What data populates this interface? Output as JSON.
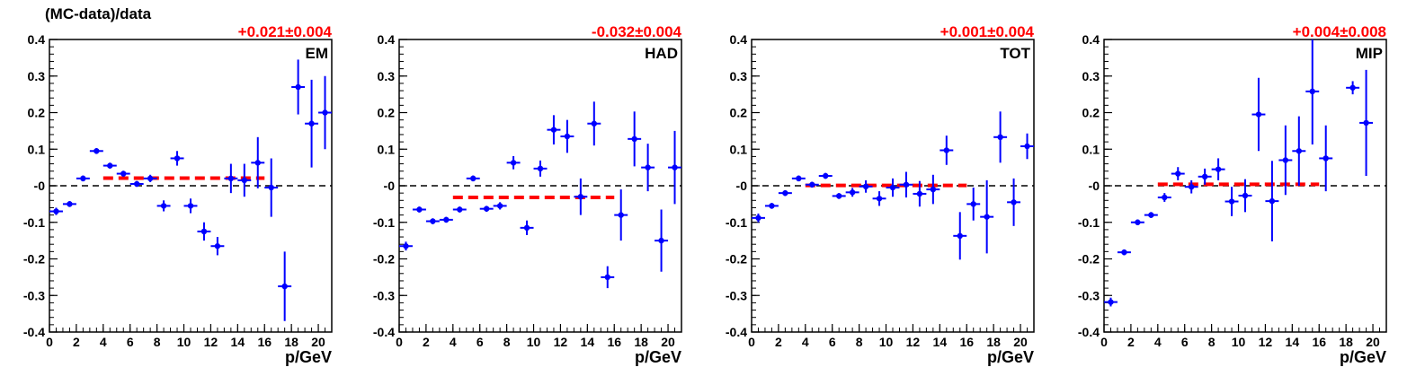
{
  "figure": {
    "ylabel": "(MC-data)/data"
  },
  "chart_data": [
    {
      "type": "scatter",
      "panel_label": "EM",
      "fit_result": "+0.021±0.004",
      "xlabel": "p/GeV",
      "xlim": [
        0,
        21
      ],
      "ylim": [
        -0.4,
        0.4
      ],
      "x_ticks": [
        0,
        2,
        4,
        6,
        8,
        10,
        12,
        14,
        16,
        18,
        20
      ],
      "y_ticks": [
        -0.4,
        -0.3,
        -0.2,
        -0.1,
        0,
        0.1,
        0.2,
        0.3,
        0.4
      ],
      "y_tick_labels": [
        "-0.4",
        "-0.3",
        "-0.2",
        "-0.1",
        "-0",
        "0.1",
        "0.2",
        "0.3",
        "0.4"
      ],
      "reference_line": {
        "y": 0,
        "style": "dashed",
        "color": "#000000"
      },
      "fit_line": {
        "y": 0.021,
        "x_range": [
          4,
          16
        ],
        "style": "dashed",
        "color": "#ff0000"
      },
      "marker_color": "#0000ff",
      "points": [
        {
          "x": 0.5,
          "y": -0.07,
          "err": 0.01
        },
        {
          "x": 1.5,
          "y": -0.05,
          "err": 0.008
        },
        {
          "x": 2.5,
          "y": 0.02,
          "err": 0.008
        },
        {
          "x": 3.5,
          "y": 0.095,
          "err": 0.008
        },
        {
          "x": 4.5,
          "y": 0.055,
          "err": 0.008
        },
        {
          "x": 5.5,
          "y": 0.033,
          "err": 0.008
        },
        {
          "x": 6.5,
          "y": 0.005,
          "err": 0.008
        },
        {
          "x": 7.5,
          "y": 0.02,
          "err": 0.01
        },
        {
          "x": 8.5,
          "y": -0.055,
          "err": 0.015
        },
        {
          "x": 9.5,
          "y": 0.075,
          "err": 0.02
        },
        {
          "x": 10.5,
          "y": -0.055,
          "err": 0.02
        },
        {
          "x": 11.5,
          "y": -0.125,
          "err": 0.025
        },
        {
          "x": 12.5,
          "y": -0.165,
          "err": 0.025
        },
        {
          "x": 13.5,
          "y": 0.02,
          "err": 0.04
        },
        {
          "x": 14.5,
          "y": 0.015,
          "err": 0.045
        },
        {
          "x": 15.5,
          "y": 0.063,
          "err": 0.07
        },
        {
          "x": 16.5,
          "y": -0.005,
          "err": 0.08
        },
        {
          "x": 17.5,
          "y": -0.275,
          "err": 0.095
        },
        {
          "x": 18.5,
          "y": 0.27,
          "err": 0.075
        },
        {
          "x": 19.5,
          "y": 0.17,
          "err": 0.12
        },
        {
          "x": 20.5,
          "y": 0.2,
          "err": 0.1
        }
      ]
    },
    {
      "type": "scatter",
      "panel_label": "HAD",
      "fit_result": "-0.032±0.004",
      "xlabel": "p/GeV",
      "xlim": [
        0,
        21
      ],
      "ylim": [
        -0.4,
        0.4
      ],
      "x_ticks": [
        0,
        2,
        4,
        6,
        8,
        10,
        12,
        14,
        16,
        18,
        20
      ],
      "y_ticks": [
        -0.4,
        -0.3,
        -0.2,
        -0.1,
        0,
        0.1,
        0.2,
        0.3,
        0.4
      ],
      "y_tick_labels": [
        "-0.4",
        "-0.3",
        "-0.2",
        "-0.1",
        "-0",
        "0.1",
        "0.2",
        "0.3",
        "0.4"
      ],
      "reference_line": {
        "y": 0,
        "style": "dashed",
        "color": "#000000"
      },
      "fit_line": {
        "y": -0.032,
        "x_range": [
          4,
          16
        ],
        "style": "dashed",
        "color": "#ff0000"
      },
      "marker_color": "#0000ff",
      "points": [
        {
          "x": 0.5,
          "y": -0.165,
          "err": 0.012
        },
        {
          "x": 1.5,
          "y": -0.065,
          "err": 0.008
        },
        {
          "x": 2.5,
          "y": -0.097,
          "err": 0.008
        },
        {
          "x": 3.5,
          "y": -0.093,
          "err": 0.008
        },
        {
          "x": 4.5,
          "y": -0.065,
          "err": 0.008
        },
        {
          "x": 5.5,
          "y": 0.02,
          "err": 0.008
        },
        {
          "x": 6.5,
          "y": -0.063,
          "err": 0.008
        },
        {
          "x": 7.5,
          "y": -0.055,
          "err": 0.01
        },
        {
          "x": 8.5,
          "y": 0.063,
          "err": 0.018
        },
        {
          "x": 9.5,
          "y": -0.115,
          "err": 0.02
        },
        {
          "x": 10.5,
          "y": 0.047,
          "err": 0.022
        },
        {
          "x": 11.5,
          "y": 0.153,
          "err": 0.04
        },
        {
          "x": 12.5,
          "y": 0.135,
          "err": 0.045
        },
        {
          "x": 13.5,
          "y": -0.03,
          "err": 0.05
        },
        {
          "x": 14.5,
          "y": 0.17,
          "err": 0.06
        },
        {
          "x": 15.5,
          "y": -0.25,
          "err": 0.03
        },
        {
          "x": 16.5,
          "y": -0.08,
          "err": 0.07
        },
        {
          "x": 17.5,
          "y": 0.128,
          "err": 0.075
        },
        {
          "x": 18.5,
          "y": 0.05,
          "err": 0.065
        },
        {
          "x": 19.5,
          "y": -0.15,
          "err": 0.085
        },
        {
          "x": 20.5,
          "y": 0.05,
          "err": 0.1
        }
      ]
    },
    {
      "type": "scatter",
      "panel_label": "TOT",
      "fit_result": "+0.001±0.004",
      "xlabel": "p/GeV",
      "xlim": [
        0,
        21
      ],
      "ylim": [
        -0.4,
        0.4
      ],
      "x_ticks": [
        0,
        2,
        4,
        6,
        8,
        10,
        12,
        14,
        16,
        18,
        20
      ],
      "y_ticks": [
        -0.4,
        -0.3,
        -0.2,
        -0.1,
        0,
        0.1,
        0.2,
        0.3,
        0.4
      ],
      "y_tick_labels": [
        "-0.4",
        "-0.3",
        "-0.2",
        "-0.1",
        "-0",
        "0.1",
        "0.2",
        "0.3",
        "0.4"
      ],
      "reference_line": {
        "y": 0,
        "style": "dashed",
        "color": "#000000"
      },
      "fit_line": {
        "y": 0.001,
        "x_range": [
          4,
          16
        ],
        "style": "dashed",
        "color": "#ff0000"
      },
      "marker_color": "#0000ff",
      "points": [
        {
          "x": 0.5,
          "y": -0.088,
          "err": 0.012
        },
        {
          "x": 1.5,
          "y": -0.055,
          "err": 0.008
        },
        {
          "x": 2.5,
          "y": -0.02,
          "err": 0.008
        },
        {
          "x": 3.5,
          "y": 0.02,
          "err": 0.008
        },
        {
          "x": 4.5,
          "y": 0.003,
          "err": 0.008
        },
        {
          "x": 5.5,
          "y": 0.027,
          "err": 0.008
        },
        {
          "x": 6.5,
          "y": -0.028,
          "err": 0.008
        },
        {
          "x": 7.5,
          "y": -0.018,
          "err": 0.012
        },
        {
          "x": 8.5,
          "y": -0.002,
          "err": 0.017
        },
        {
          "x": 9.5,
          "y": -0.035,
          "err": 0.02
        },
        {
          "x": 10.5,
          "y": -0.005,
          "err": 0.025
        },
        {
          "x": 11.5,
          "y": 0.003,
          "err": 0.035
        },
        {
          "x": 12.5,
          "y": -0.022,
          "err": 0.035
        },
        {
          "x": 13.5,
          "y": -0.01,
          "err": 0.04
        },
        {
          "x": 14.5,
          "y": 0.097,
          "err": 0.04
        },
        {
          "x": 15.5,
          "y": -0.137,
          "err": 0.065
        },
        {
          "x": 16.5,
          "y": -0.05,
          "err": 0.045
        },
        {
          "x": 17.5,
          "y": -0.085,
          "err": 0.1
        },
        {
          "x": 18.5,
          "y": 0.133,
          "err": 0.07
        },
        {
          "x": 19.5,
          "y": -0.045,
          "err": 0.065
        },
        {
          "x": 20.5,
          "y": 0.108,
          "err": 0.035
        }
      ]
    },
    {
      "type": "scatter",
      "panel_label": "MIP",
      "fit_result": "+0.004±0.008",
      "xlabel": "p/GeV",
      "xlim": [
        0,
        21
      ],
      "ylim": [
        -0.4,
        0.4
      ],
      "x_ticks": [
        0,
        2,
        4,
        6,
        8,
        10,
        12,
        14,
        16,
        18,
        20
      ],
      "y_ticks": [
        -0.4,
        -0.3,
        -0.2,
        -0.1,
        0,
        0.1,
        0.2,
        0.3,
        0.4
      ],
      "y_tick_labels": [
        "-0.4",
        "-0.3",
        "-0.2",
        "-0.1",
        "-0",
        "0.1",
        "0.2",
        "0.3",
        "0.4"
      ],
      "reference_line": {
        "y": 0,
        "style": "dashed",
        "color": "#000000"
      },
      "fit_line": {
        "y": 0.004,
        "x_range": [
          4,
          16
        ],
        "style": "dashed",
        "color": "#ff0000"
      },
      "marker_color": "#0000ff",
      "points": [
        {
          "x": 0.5,
          "y": -0.318,
          "err": 0.012
        },
        {
          "x": 1.5,
          "y": -0.182,
          "err": 0.008
        },
        {
          "x": 2.5,
          "y": -0.1,
          "err": 0.008
        },
        {
          "x": 3.5,
          "y": -0.08,
          "err": 0.008
        },
        {
          "x": 4.5,
          "y": -0.032,
          "err": 0.012
        },
        {
          "x": 5.5,
          "y": 0.033,
          "err": 0.018
        },
        {
          "x": 6.5,
          "y": -0.003,
          "err": 0.018
        },
        {
          "x": 7.5,
          "y": 0.025,
          "err": 0.022
        },
        {
          "x": 8.5,
          "y": 0.045,
          "err": 0.03
        },
        {
          "x": 9.5,
          "y": -0.043,
          "err": 0.04
        },
        {
          "x": 10.5,
          "y": -0.027,
          "err": 0.045
        },
        {
          "x": 11.5,
          "y": 0.195,
          "err": 0.1
        },
        {
          "x": 12.5,
          "y": -0.042,
          "err": 0.11
        },
        {
          "x": 13.5,
          "y": 0.07,
          "err": 0.095
        },
        {
          "x": 14.5,
          "y": 0.095,
          "err": 0.095
        },
        {
          "x": 15.5,
          "y": 0.258,
          "err": 0.145
        },
        {
          "x": 16.5,
          "y": 0.075,
          "err": 0.09
        },
        {
          "x": 18.5,
          "y": 0.268,
          "err": 0.018
        },
        {
          "x": 19.5,
          "y": 0.172,
          "err": 0.145
        }
      ]
    }
  ]
}
